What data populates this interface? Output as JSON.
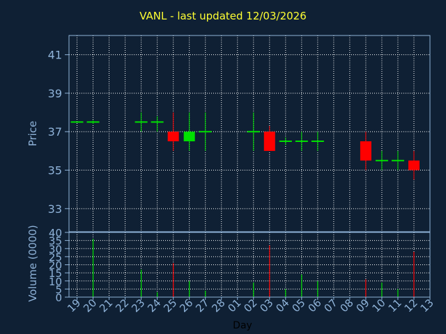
{
  "title": "VANL - last updated 12/03/2026",
  "chart_data": [
    {
      "type": "candlestick",
      "ylabel": "Price",
      "ylim": [
        31.8,
        42
      ],
      "yticks": [
        33,
        35,
        37,
        39,
        41
      ],
      "grid": true,
      "colors": {
        "up": "#00e000",
        "down": "#ff0000",
        "background": "#0f2034",
        "grid": "#ffffff",
        "axis": "#8fb3d9"
      },
      "candles": [
        {
          "x": 19,
          "open": 37.5,
          "high": 37.5,
          "low": 37.5,
          "close": 37.5
        },
        {
          "x": 20,
          "open": 37.5,
          "high": 37.6,
          "low": 37.4,
          "close": 37.5
        },
        {
          "x": 23,
          "open": 37.5,
          "high": 38.0,
          "low": 37.0,
          "close": 37.5
        },
        {
          "x": 24,
          "open": 37.5,
          "high": 37.8,
          "low": 37.0,
          "close": 37.5
        },
        {
          "x": 25,
          "open": 37.0,
          "high": 38.0,
          "low": 36.0,
          "close": 36.5
        },
        {
          "x": 26,
          "open": 36.5,
          "high": 38.0,
          "low": 36.0,
          "close": 37.0
        },
        {
          "x": 27,
          "open": 37.0,
          "high": 38.0,
          "low": 36.0,
          "close": 37.0
        },
        {
          "x": 30,
          "open": 37.0,
          "high": 38.0,
          "low": 36.0,
          "close": 37.0
        },
        {
          "x": 31,
          "open": 37.0,
          "high": 37.3,
          "low": 36.0,
          "close": 36.0
        },
        {
          "x": 32,
          "open": 36.5,
          "high": 36.7,
          "low": 36.3,
          "close": 36.5
        },
        {
          "x": 33,
          "open": 36.5,
          "high": 37.0,
          "low": 36.0,
          "close": 36.5
        },
        {
          "x": 34,
          "open": 36.5,
          "high": 37.0,
          "low": 36.0,
          "close": 36.5
        },
        {
          "x": 37,
          "open": 36.5,
          "high": 37.0,
          "low": 35.0,
          "close": 35.5
        },
        {
          "x": 38,
          "open": 35.5,
          "high": 36.0,
          "low": 35.0,
          "close": 35.5
        },
        {
          "x": 39,
          "open": 35.5,
          "high": 36.0,
          "low": 35.0,
          "close": 35.5
        },
        {
          "x": 40,
          "open": 35.5,
          "high": 36.0,
          "low": 34.5,
          "close": 35.0
        }
      ]
    },
    {
      "type": "bar",
      "xlabel": "Day",
      "ylabel": "Volume (0000)",
      "ylim": [
        0,
        40
      ],
      "yticks": [
        0,
        5,
        10,
        15,
        20,
        25,
        30,
        35,
        40
      ],
      "grid": true,
      "xticks": [
        {
          "x": 19,
          "label": "19"
        },
        {
          "x": 20,
          "label": "20"
        },
        {
          "x": 21,
          "label": "21"
        },
        {
          "x": 22,
          "label": "22"
        },
        {
          "x": 23,
          "label": "23"
        },
        {
          "x": 24,
          "label": "24"
        },
        {
          "x": 25,
          "label": "25"
        },
        {
          "x": 26,
          "label": "26"
        },
        {
          "x": 27,
          "label": "27"
        },
        {
          "x": 28,
          "label": "28"
        },
        {
          "x": 29,
          "label": "01"
        },
        {
          "x": 30,
          "label": "02"
        },
        {
          "x": 31,
          "label": "03"
        },
        {
          "x": 32,
          "label": "04"
        },
        {
          "x": 33,
          "label": "05"
        },
        {
          "x": 34,
          "label": "06"
        },
        {
          "x": 35,
          "label": "07"
        },
        {
          "x": 36,
          "label": "08"
        },
        {
          "x": 37,
          "label": "09"
        },
        {
          "x": 38,
          "label": "10"
        },
        {
          "x": 39,
          "label": "11"
        },
        {
          "x": 40,
          "label": "12"
        },
        {
          "x": 41,
          "label": "13"
        }
      ],
      "bars": [
        {
          "x": 20,
          "value": 36,
          "dir": "up"
        },
        {
          "x": 23,
          "value": 17,
          "dir": "up"
        },
        {
          "x": 24,
          "value": 3,
          "dir": "up"
        },
        {
          "x": 25,
          "value": 21,
          "dir": "down"
        },
        {
          "x": 26,
          "value": 10,
          "dir": "up"
        },
        {
          "x": 27,
          "value": 4,
          "dir": "up"
        },
        {
          "x": 30,
          "value": 9,
          "dir": "up"
        },
        {
          "x": 31,
          "value": 32,
          "dir": "down"
        },
        {
          "x": 32,
          "value": 5,
          "dir": "up"
        },
        {
          "x": 33,
          "value": 14,
          "dir": "up"
        },
        {
          "x": 34,
          "value": 10,
          "dir": "up"
        },
        {
          "x": 37,
          "value": 11,
          "dir": "down"
        },
        {
          "x": 38,
          "value": 9,
          "dir": "up"
        },
        {
          "x": 39,
          "value": 5,
          "dir": "up"
        },
        {
          "x": 40,
          "value": 28,
          "dir": "down"
        }
      ]
    }
  ]
}
